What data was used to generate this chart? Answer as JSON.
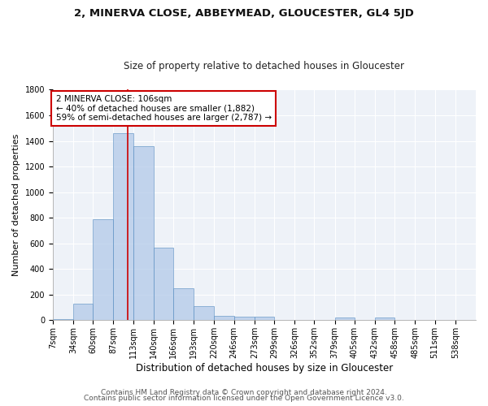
{
  "title1": "2, MINERVA CLOSE, ABBEYMEAD, GLOUCESTER, GL4 5JD",
  "title2": "Size of property relative to detached houses in Gloucester",
  "xlabel": "Distribution of detached houses by size in Gloucester",
  "ylabel": "Number of detached properties",
  "bin_labels": [
    "7sqm",
    "34sqm",
    "60sqm",
    "87sqm",
    "113sqm",
    "140sqm",
    "166sqm",
    "193sqm",
    "220sqm",
    "246sqm",
    "273sqm",
    "299sqm",
    "326sqm",
    "352sqm",
    "379sqm",
    "405sqm",
    "432sqm",
    "458sqm",
    "485sqm",
    "511sqm",
    "538sqm"
  ],
  "bin_edges": [
    7,
    34,
    60,
    87,
    113,
    140,
    166,
    193,
    220,
    246,
    273,
    299,
    326,
    352,
    379,
    405,
    432,
    458,
    485,
    511,
    538,
    565
  ],
  "bar_values": [
    10,
    130,
    790,
    1460,
    1360,
    570,
    250,
    110,
    35,
    30,
    30,
    0,
    0,
    0,
    20,
    0,
    20,
    0,
    0,
    0,
    0
  ],
  "bar_color": "#aec6e8",
  "bar_edgecolor": "#5a8fc2",
  "bar_alpha": 0.7,
  "vline_x": 106,
  "vline_color": "#cc0000",
  "annotation_line1": "2 MINERVA CLOSE: 106sqm",
  "annotation_line2": "← 40% of detached houses are smaller (1,882)",
  "annotation_line3": "59% of semi-detached houses are larger (2,787) →",
  "annotation_box_color": "#cc0000",
  "annotation_text_color": "#000000",
  "ylim": [
    0,
    1800
  ],
  "yticks": [
    0,
    200,
    400,
    600,
    800,
    1000,
    1200,
    1400,
    1600,
    1800
  ],
  "background_color": "#eef2f8",
  "footer1": "Contains HM Land Registry data © Crown copyright and database right 2024.",
  "footer2": "Contains public sector information licensed under the Open Government Licence v3.0.",
  "title1_fontsize": 9.5,
  "title2_fontsize": 8.5,
  "xlabel_fontsize": 8.5,
  "ylabel_fontsize": 8,
  "tick_fontsize": 7,
  "annotation_fontsize": 7.5,
  "footer_fontsize": 6.5
}
